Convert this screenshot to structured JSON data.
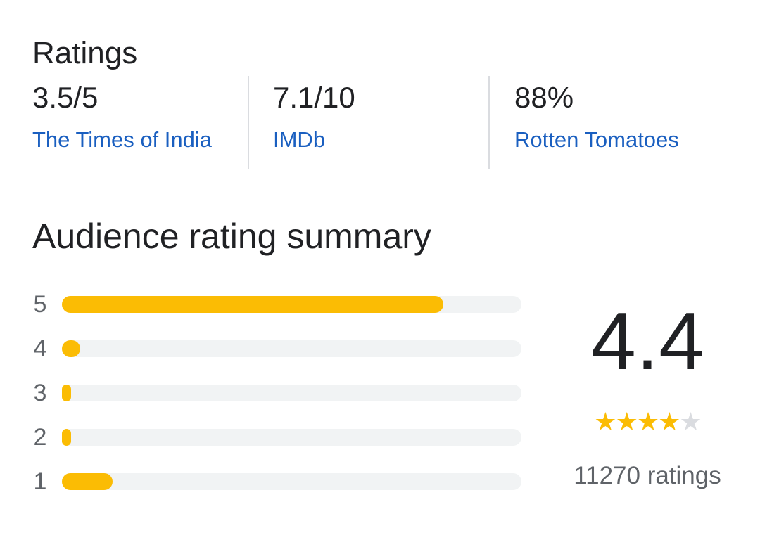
{
  "ratings": {
    "title": "Ratings",
    "sources": [
      {
        "score": "3.5/5",
        "name": "The Times of India"
      },
      {
        "score": "7.1/10",
        "name": "IMDb"
      },
      {
        "score": "88%",
        "name": "Rotten Tomatoes"
      }
    ]
  },
  "audience": {
    "title": "Audience rating summary",
    "average": "4.4",
    "stars": {
      "filled": 4,
      "total": 5
    },
    "count_label": "11270 ratings",
    "bar_color": "#fbbc04",
    "track_color": "#f1f3f4"
  },
  "chart_data": {
    "type": "bar",
    "orientation": "horizontal",
    "categories": [
      "5",
      "4",
      "3",
      "2",
      "1"
    ],
    "values": [
      0.83,
      0.04,
      0.02,
      0.02,
      0.11
    ],
    "value_unit": "fraction of bar length",
    "title": "Audience rating summary"
  }
}
